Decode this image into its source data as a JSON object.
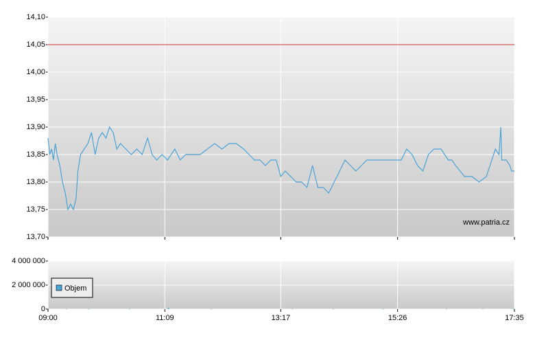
{
  "chart_data": [
    {
      "type": "line",
      "x": [
        "09:00",
        "09:02",
        "09:04",
        "09:06",
        "09:08",
        "09:10",
        "09:13",
        "09:16",
        "09:19",
        "09:22",
        "09:25",
        "09:28",
        "09:31",
        "09:33",
        "09:36",
        "09:40",
        "09:44",
        "09:48",
        "09:52",
        "09:56",
        "10:00",
        "10:04",
        "10:08",
        "10:12",
        "10:16",
        "10:20",
        "10:26",
        "10:32",
        "10:38",
        "10:44",
        "10:50",
        "10:55",
        "11:00",
        "11:06",
        "11:12",
        "11:20",
        "11:26",
        "11:32",
        "11:40",
        "11:48",
        "11:56",
        "12:04",
        "12:12",
        "12:20",
        "12:28",
        "12:36",
        "12:42",
        "12:48",
        "12:54",
        "13:00",
        "13:06",
        "13:12",
        "13:17",
        "13:22",
        "13:28",
        "13:34",
        "13:40",
        "13:46",
        "13:52",
        "13:58",
        "14:04",
        "14:10",
        "14:16",
        "14:22",
        "14:28",
        "14:34",
        "14:40",
        "14:46",
        "14:52",
        "14:58",
        "15:04",
        "15:10",
        "15:20",
        "15:30",
        "15:36",
        "15:42",
        "15:48",
        "15:54",
        "16:00",
        "16:06",
        "16:14",
        "16:18",
        "16:22",
        "16:26",
        "16:30",
        "16:40",
        "16:48",
        "16:56",
        "17:04",
        "17:10",
        "17:14",
        "17:18",
        "17:20",
        "17:21",
        "17:26",
        "17:30",
        "17:32",
        "17:35"
      ],
      "values": [
        13.88,
        13.85,
        13.86,
        13.84,
        13.87,
        13.85,
        13.83,
        13.8,
        13.78,
        13.75,
        13.76,
        13.75,
        13.77,
        13.82,
        13.85,
        13.86,
        13.87,
        13.89,
        13.85,
        13.88,
        13.89,
        13.88,
        13.9,
        13.89,
        13.86,
        13.87,
        13.86,
        13.85,
        13.86,
        13.85,
        13.88,
        13.85,
        13.84,
        13.85,
        13.84,
        13.86,
        13.84,
        13.85,
        13.85,
        13.85,
        13.86,
        13.87,
        13.86,
        13.87,
        13.87,
        13.86,
        13.85,
        13.84,
        13.84,
        13.83,
        13.84,
        13.84,
        13.81,
        13.82,
        13.81,
        13.8,
        13.8,
        13.79,
        13.83,
        13.79,
        13.79,
        13.78,
        13.8,
        13.82,
        13.84,
        13.83,
        13.82,
        13.83,
        13.84,
        13.84,
        13.84,
        13.84,
        13.84,
        13.84,
        13.86,
        13.85,
        13.83,
        13.82,
        13.85,
        13.86,
        13.86,
        13.85,
        13.84,
        13.84,
        13.83,
        13.81,
        13.81,
        13.8,
        13.81,
        13.84,
        13.86,
        13.85,
        13.9,
        13.84,
        13.84,
        13.83,
        13.82,
        13.82
      ],
      "color": "#4aa3d6",
      "reference_line": {
        "value": 14.05,
        "color": "#cc3333"
      },
      "xlim": [
        "09:00",
        "17:35"
      ],
      "ylim": [
        13.7,
        14.1
      ],
      "yticks": [
        {
          "value": 13.7,
          "label": "13,70"
        },
        {
          "value": 13.75,
          "label": "13,75"
        },
        {
          "value": 13.8,
          "label": "13,80"
        },
        {
          "value": 13.85,
          "label": "13,85"
        },
        {
          "value": 13.9,
          "label": "13,90"
        },
        {
          "value": 13.95,
          "label": "13,95"
        },
        {
          "value": 14.0,
          "label": "14,00"
        },
        {
          "value": 14.05,
          "label": "14,05"
        },
        {
          "value": 14.1,
          "label": "14,10"
        }
      ],
      "grid": true,
      "annotation": "www.patria.cz"
    },
    {
      "type": "bar",
      "x": [
        "09:00",
        "09:20",
        "09:45",
        "10:30",
        "11:13",
        "12:00",
        "13:30",
        "14:15",
        "15:10",
        "16:20",
        "17:00",
        "17:34"
      ],
      "series": [
        {
          "name": "Objem",
          "color": "#4aa3d6",
          "values": [
            40000,
            15000,
            10000,
            12000,
            90000,
            8000,
            20000,
            10000,
            8000,
            12000,
            15000,
            30000
          ]
        }
      ],
      "xlim": [
        "09:00",
        "17:35"
      ],
      "xticks": [
        "09:00",
        "11:09",
        "13:17",
        "15:26",
        "17:35"
      ],
      "ylim": [
        0,
        4000000
      ],
      "yticks": [
        0,
        {
          "value": 2000000,
          "label": "2 000 000"
        },
        {
          "value": 4000000,
          "label": "4 000 000"
        }
      ],
      "grid": true,
      "legend": "lower left"
    }
  ]
}
